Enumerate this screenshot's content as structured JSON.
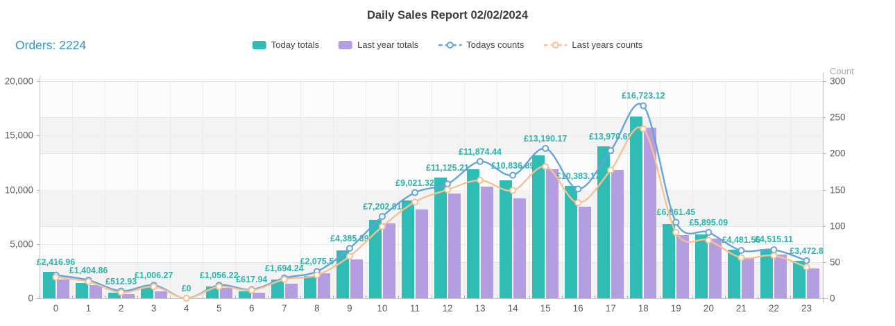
{
  "title": "Daily Sales Report 02/02/2024",
  "orders_label": "Orders: 2224",
  "colors": {
    "today_bar": "#2fbcb5",
    "last_year_bar": "#b49de0",
    "todays_counts_line": "#64a3dc",
    "last_years_counts_line": "#f7c193",
    "bar_label_text": "#2cb5ad",
    "orders_text": "#2e96c5",
    "title_text": "#3b3b3b"
  },
  "chart_data": {
    "type": "bar",
    "subtype": "grouped-bars-with-lines",
    "title": "Daily Sales Report 02/02/2024",
    "xlabel": "",
    "ylabel_left": "",
    "ylabel_right": "Count",
    "grid": true,
    "legend_position": "top-center",
    "categories": [
      "0",
      "1",
      "2",
      "3",
      "4",
      "5",
      "6",
      "7",
      "8",
      "9",
      "10",
      "11",
      "12",
      "13",
      "14",
      "15",
      "16",
      "17",
      "18",
      "19",
      "20",
      "21",
      "22",
      "23"
    ],
    "left_axis": {
      "min": 0,
      "max": 20000,
      "tick_labels": [
        "20,000",
        "15,000",
        "10,000",
        "5,000",
        "0"
      ]
    },
    "right_axis": {
      "min": 0,
      "max": 300,
      "title": "Count",
      "tick_labels": [
        "300",
        "250",
        "200",
        "150",
        "100",
        "50",
        "0"
      ]
    },
    "series": [
      {
        "name": "Today totals",
        "type": "bar",
        "axis": "left",
        "color": "#2fbcb5",
        "values": [
          2416.96,
          1404.86,
          512.93,
          1006.27,
          0,
          1056.22,
          617.94,
          1694.24,
          2075.5,
          4385.39,
          7202.01,
          9021.32,
          11125.21,
          11874.44,
          10836.89,
          13190.17,
          10383.17,
          13970.69,
          16723.12,
          6861.45,
          5895.09,
          4481.56,
          4515.11,
          3472.8
        ],
        "value_labels": [
          "£2,416.96",
          "£1,404.86",
          "£512.93",
          "£1,006.27",
          "£0",
          "£1,056.22",
          "£617.94",
          "£1,694.24",
          "£2,075.5",
          "£4,385.39",
          "£7,202.01",
          "£9,021.32",
          "£11,125.21",
          "£11,874.44",
          "£10,836.89",
          "£13,190.17",
          "£10,383.17",
          "£13,970.69",
          "£16,723.12",
          "£6,861.45",
          "£5,895.09",
          "£4,481.56",
          "£4,515.11",
          "£3,472.8"
        ]
      },
      {
        "name": "Last year totals",
        "type": "bar",
        "axis": "left",
        "color": "#b49de0",
        "values_estimated": true,
        "values": [
          1700,
          1230,
          380,
          630,
          0,
          975,
          500,
          1360,
          2300,
          3550,
          6900,
          8200,
          9650,
          10300,
          9200,
          11900,
          8450,
          11850,
          15700,
          5800,
          5500,
          3700,
          4000,
          2750
        ]
      },
      {
        "name": "Todays counts",
        "type": "line",
        "axis": "right",
        "color": "#64a3dc",
        "values_estimated": true,
        "values": [
          32,
          25,
          10,
          18,
          0,
          18,
          12,
          28,
          37,
          69,
          113,
          146,
          158,
          189,
          170,
          207,
          151,
          204,
          266,
          105,
          91,
          66,
          67,
          52
        ]
      },
      {
        "name": "Last years counts",
        "type": "line",
        "axis": "right",
        "color": "#f7c193",
        "values_estimated": true,
        "values": [
          29,
          23,
          8,
          16,
          0,
          16,
          11,
          26,
          32,
          58,
          99,
          133,
          150,
          163,
          149,
          182,
          132,
          177,
          234,
          91,
          80,
          56,
          59,
          43
        ]
      }
    ]
  }
}
